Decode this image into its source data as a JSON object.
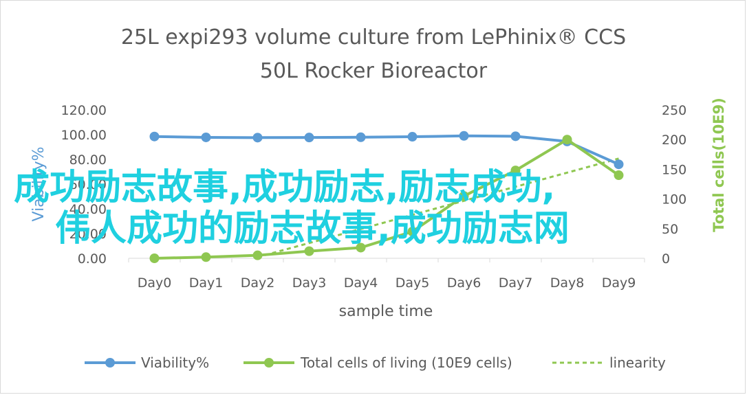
{
  "chart_data": {
    "type": "line",
    "title_line1": "25L  expi293 volume culture  from LePhinix® CCS",
    "title_line2": "50L Rocker Bioreactor",
    "xlabel": "sample  time",
    "ylabel_left": "Viability%",
    "ylabel_right": "Total cells(10E9)",
    "categories": [
      "Day0",
      "Day1",
      "Day2",
      "Day3",
      "Day4",
      "Day5",
      "Day6",
      "Day7",
      "Day8",
      "Day9"
    ],
    "ylim_left": [
      0,
      120
    ],
    "yticks_left": [
      "0.00",
      "20.00",
      "40.00",
      "60.00",
      "80.00",
      "100.00",
      "120.00"
    ],
    "ylim_right": [
      0,
      250
    ],
    "yticks_right": [
      "0",
      "50",
      "100",
      "150",
      "200",
      "250"
    ],
    "grid": false,
    "legend_position": "bottom",
    "series": [
      {
        "name": "Viability%",
        "axis": "left",
        "color": "#5b9bd5",
        "marker": "circle",
        "values": [
          98.5,
          97.8,
          97.6,
          97.7,
          97.9,
          98.3,
          99.0,
          98.7,
          94.5,
          76.0
        ]
      },
      {
        "name": "Total cells of living (10E9 cells)",
        "axis": "right",
        "color": "#8fc751",
        "marker": "circle",
        "values": [
          0,
          2,
          5,
          12,
          18,
          45,
          105,
          148,
          200,
          140
        ]
      },
      {
        "name": "linearity",
        "axis": "right",
        "color": "#8fc751",
        "style": "dashed",
        "x": [
          "Day2",
          "Day9"
        ],
        "values": [
          2,
          168
        ]
      }
    ]
  },
  "overlay": {
    "line1": "成功励志故事,成功励志,励志成功,",
    "line2": "伟人成功的励志故事,成功励志网"
  }
}
